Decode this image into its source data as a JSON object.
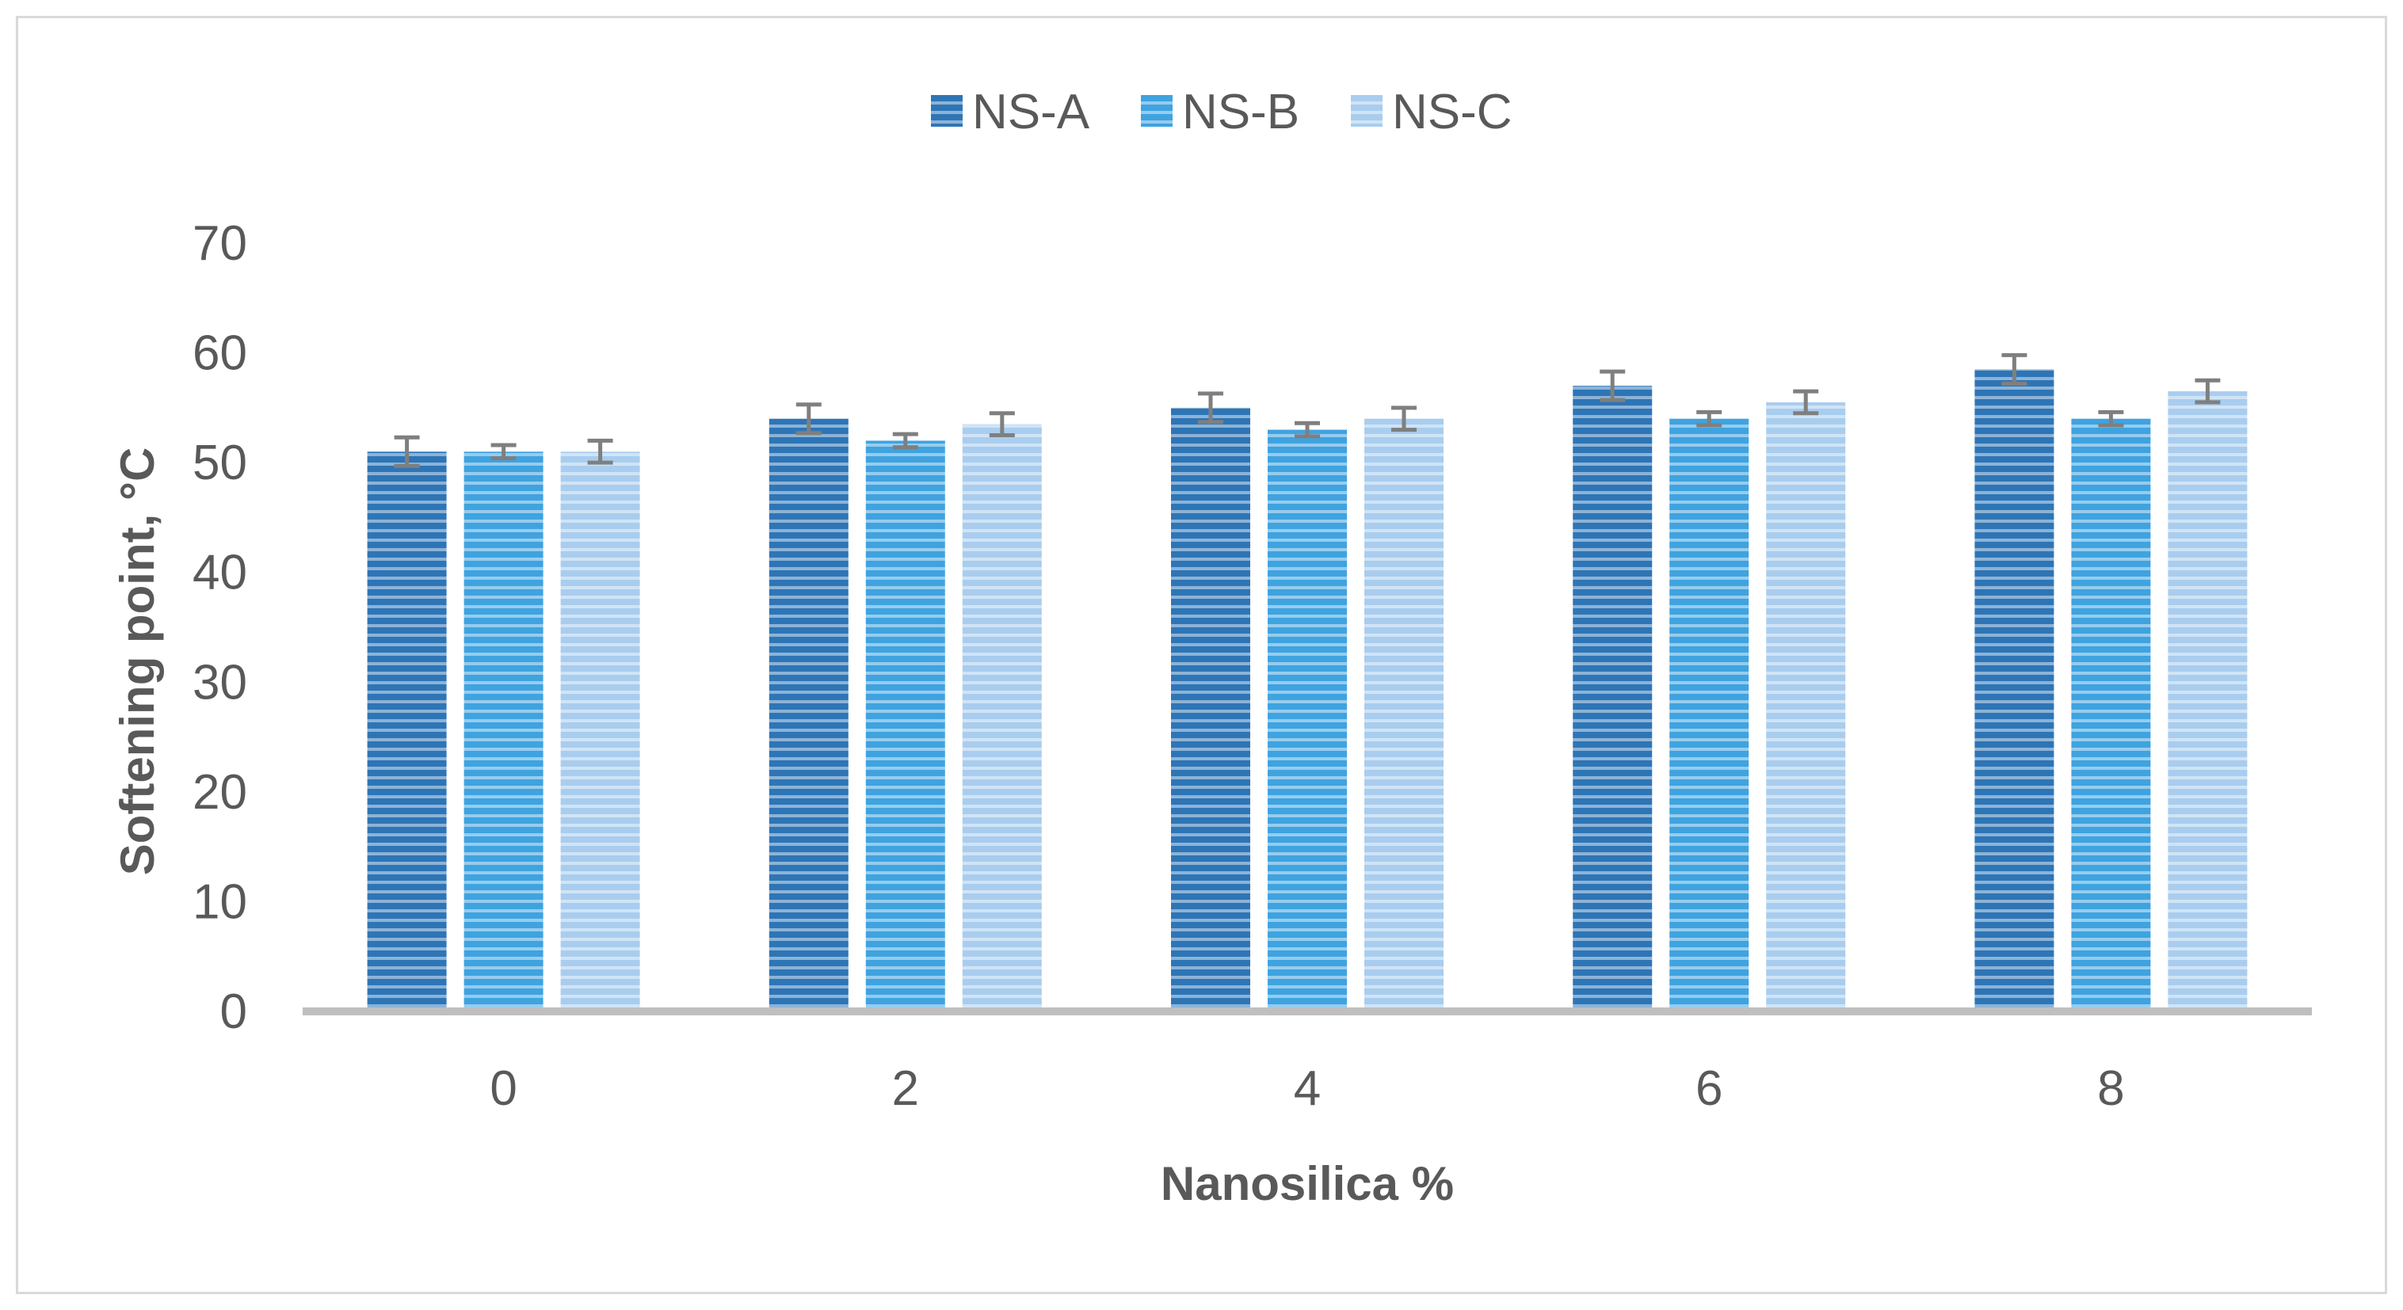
{
  "chart_data": {
    "type": "bar",
    "title": "",
    "xlabel": "Nanosilica %",
    "ylabel": "Softening point, °C",
    "categories": [
      "0",
      "2",
      "4",
      "6",
      "8"
    ],
    "ylim": [
      0,
      70
    ],
    "yticks": [
      0,
      10,
      20,
      30,
      40,
      50,
      60,
      70
    ],
    "grid": false,
    "legend_position": "top-center",
    "series": [
      {
        "name": "NS-A",
        "color": "#2e75b6",
        "values": [
          51,
          54,
          55,
          57,
          58.5
        ],
        "errors": [
          1.3,
          1.3,
          1.3,
          1.3,
          1.3
        ]
      },
      {
        "name": "NS-B",
        "color": "#3fa3e0",
        "values": [
          51,
          52,
          53,
          54,
          54
        ],
        "errors": [
          0.6,
          0.6,
          0.6,
          0.6,
          0.6
        ]
      },
      {
        "name": "NS-C",
        "color": "#a9cdee",
        "values": [
          51,
          53.5,
          54,
          55.5,
          56.5
        ],
        "errors": [
          1.0,
          1.0,
          1.0,
          1.0,
          1.0
        ]
      }
    ]
  }
}
